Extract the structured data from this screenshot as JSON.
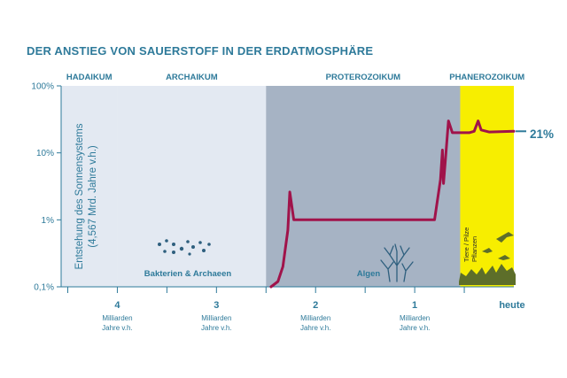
{
  "title": "DER ANSTIEG VON SAUERSTOFF IN DER ERDATMOSPHÄRE",
  "chart_data": {
    "type": "line",
    "title": "DER ANSTIEG VON SAUERSTOFF IN DER ERDATMOSPHÄRE",
    "y_scale": "log",
    "ylim": [
      0.1,
      100
    ],
    "y_ticks": [
      "100%",
      "10%",
      "1%",
      "0,1%"
    ],
    "x_direction": "time before present, decreasing to the right",
    "xlim": [
      4.567,
      0
    ],
    "x_ticks": [
      {
        "value": 4,
        "label": "4",
        "sub1": "Milliarden",
        "sub2": "Jahre v.h."
      },
      {
        "value": 3,
        "label": "3",
        "sub1": "Milliarden",
        "sub2": "Jahre v.h."
      },
      {
        "value": 2,
        "label": "2",
        "sub1": "Milliarden",
        "sub2": "Jahre v.h."
      },
      {
        "value": 1,
        "label": "1",
        "sub1": "Milliarden",
        "sub2": "Jahre v.h."
      },
      {
        "value": 0,
        "label": "heute",
        "sub1": "",
        "sub2": ""
      }
    ],
    "eons": [
      {
        "name": "HADAIKUM",
        "start": 4.567,
        "end": 4.0,
        "color": "#e3e9f2"
      },
      {
        "name": "ARCHAIKUM",
        "start": 4.0,
        "end": 2.5,
        "color": "#e3e9f2"
      },
      {
        "name": "PROTEROZOIKUM",
        "start": 2.5,
        "end": 0.541,
        "color": "#a6b3c4"
      },
      {
        "name": "PHANEROZOIKUM",
        "start": 0.541,
        "end": 0,
        "color": "#f7ee00"
      }
    ],
    "series": [
      {
        "color": "#a0134a",
        "points": [
          [
            2.45,
            0.1
          ],
          [
            2.38,
            0.12
          ],
          [
            2.33,
            0.2
          ],
          [
            2.28,
            0.7
          ],
          [
            2.26,
            2.6
          ],
          [
            2.22,
            1.0
          ],
          [
            2.0,
            1.0
          ],
          [
            1.5,
            1.0
          ],
          [
            1.0,
            1.0
          ],
          [
            0.8,
            1.0
          ],
          [
            0.74,
            4.0
          ],
          [
            0.72,
            11.0
          ],
          [
            0.71,
            3.5
          ],
          [
            0.69,
            8.0
          ],
          [
            0.66,
            30.0
          ],
          [
            0.62,
            20.0
          ],
          [
            0.45,
            20.0
          ],
          [
            0.4,
            21.0
          ],
          [
            0.36,
            30.0
          ],
          [
            0.33,
            22.0
          ],
          [
            0.25,
            20.5
          ],
          [
            0.0,
            21.0
          ]
        ]
      }
    ],
    "end_label": "21%",
    "vertical_note": [
      "Entstehung des Sonnensystems",
      "(4,567 Mrd. Jahre v.h.)"
    ],
    "annotations": {
      "bacteria": "Bakterien & Archaeen",
      "algae": "Algen",
      "life": [
        "Tiere / Pilze",
        "Pflanzen"
      ]
    }
  }
}
